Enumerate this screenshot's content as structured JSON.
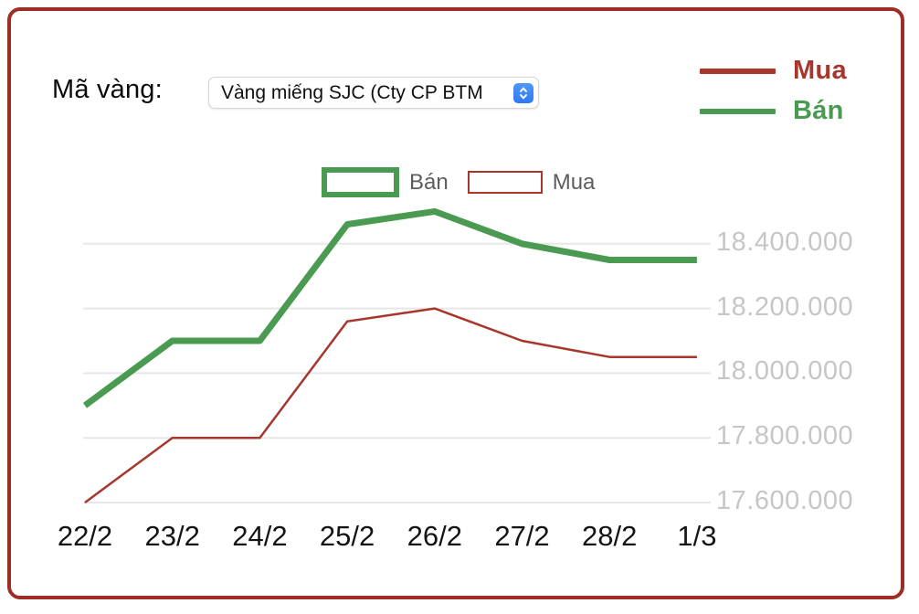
{
  "header": {
    "label": "Mã vàng:",
    "select_value": "Vàng miếng SJC (Cty CP BTM",
    "select_stepper_icon": "up-down-chevrons-icon"
  },
  "colors": {
    "mua": "#a8362d",
    "ban": "#4a9b51",
    "frame": "#9e2d25",
    "grid": "#e7e7e7",
    "y_label": "#c6c6c6",
    "x_label": "#141414",
    "legend_text": "#5d5d5d",
    "stepper_blue": "#3b82f6"
  },
  "legend_top_right": {
    "items": [
      {
        "label": "Mua",
        "color_key": "mua"
      },
      {
        "label": "Bán",
        "color_key": "ban"
      }
    ]
  },
  "legend_chart": {
    "ban_label": "Bán",
    "mua_label": "Mua"
  },
  "chart_data": {
    "type": "line",
    "x": [
      "22/2",
      "23/2",
      "24/2",
      "25/2",
      "26/2",
      "27/2",
      "28/2",
      "1/3"
    ],
    "series": [
      {
        "name": "Bán",
        "color_key": "ban",
        "values": [
          17900000,
          18100000,
          18100000,
          18460000,
          18500000,
          18400000,
          18350000,
          18350000
        ]
      },
      {
        "name": "Mua",
        "color_key": "mua",
        "values": [
          17600000,
          17800000,
          17800000,
          18160000,
          18200000,
          18100000,
          18050000,
          18050000
        ]
      }
    ],
    "y_ticks": [
      17600000,
      17800000,
      18000000,
      18200000,
      18400000
    ],
    "y_tick_labels": [
      "17.600.000",
      "17.800.000",
      "18.000.000",
      "18.200.000",
      "18.400.000"
    ],
    "ylim": [
      17600000,
      18560000
    ],
    "grid": "horizontal-only",
    "legend_position": "top-center",
    "title": "",
    "xlabel": "",
    "ylabel": ""
  }
}
